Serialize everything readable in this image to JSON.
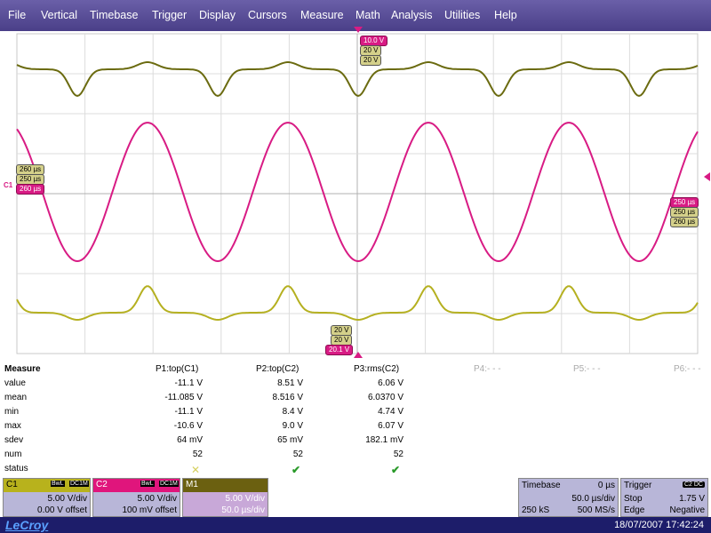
{
  "menu": [
    "File",
    "Vertical",
    "Timebase",
    "Trigger",
    "Display",
    "Cursors",
    "Measure",
    "Math",
    "Analysis",
    "Utilities",
    "Help"
  ],
  "markers": {
    "top_right_tags": [
      "10.0 V",
      "20 V",
      "20 V"
    ],
    "left_tags": [
      "260 µs",
      "250 µs",
      "260 µs"
    ],
    "right_tags": [
      "250 µs",
      "250 µs",
      "260 µs"
    ],
    "bottom_tags": [
      "20 V",
      "20 V",
      "20.1 V"
    ],
    "channel_marker": "C1"
  },
  "measure": {
    "header": "Measure",
    "columns": [
      "P1:top(C1)",
      "P2:top(C2)",
      "P3:rms(C2)",
      "P4:- - -",
      "P5:- - -",
      "P6:- - -"
    ],
    "rows": [
      {
        "label": "value",
        "values": [
          "-11.1 V",
          "8.51 V",
          "6.06 V"
        ]
      },
      {
        "label": "mean",
        "values": [
          "-11.085 V",
          "8.516 V",
          "6.0370 V"
        ]
      },
      {
        "label": "min",
        "values": [
          "-11.1 V",
          "8.4 V",
          "4.74 V"
        ]
      },
      {
        "label": "max",
        "values": [
          "-10.6 V",
          "9.0 V",
          "6.07 V"
        ]
      },
      {
        "label": "sdev",
        "values": [
          "64 mV",
          "65 mV",
          "182.1 mV"
        ]
      },
      {
        "label": "num",
        "values": [
          "52",
          "52",
          "52"
        ]
      }
    ],
    "status_label": "status",
    "status": [
      "warning",
      "ok",
      "ok"
    ]
  },
  "channels": {
    "c1": {
      "name": "C1",
      "badge_bw": "BwL",
      "badge_dc": "DC1M",
      "vdiv": "5.00 V/div",
      "offset": "0.00 V offset",
      "color": "#b8b21c"
    },
    "c2": {
      "name": "C2",
      "badge_bw": "BwL",
      "badge_dc": "DC1M",
      "vdiv": "5.00 V/div",
      "offset": "100 mV offset",
      "color": "#e0157c"
    },
    "m1": {
      "name": "M1",
      "vdiv": "5.00 V/div",
      "tdiv": "50.0 µs/div",
      "color": "#c8a8d8"
    }
  },
  "timebase": {
    "label": "Timebase",
    "delay": "0 µs",
    "tdiv": "50.0 µs/div",
    "samples": "250 kS",
    "rate": "500 MS/s"
  },
  "trigger": {
    "label": "Trigger",
    "source": "C2 DC",
    "mode": "Stop",
    "level": "1.75 V",
    "type": "Edge",
    "slope": "Negative"
  },
  "footer": {
    "brand": "LeCroy",
    "datetime": "18/07/2007 17:42:24"
  },
  "colors": {
    "c1_dark": "#6b6b10",
    "c1": "#b5b020",
    "c2": "#d81b84",
    "menubar": "#5a4f98",
    "footer": "#1d1d6a"
  }
}
